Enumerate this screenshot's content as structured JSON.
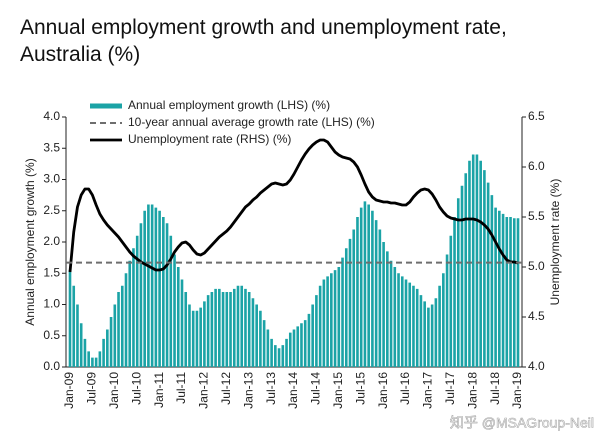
{
  "chart_data": {
    "type": "bar-line",
    "title": "Annual employment growth and unemployment rate, Australia (%)",
    "y_label": "Annual employment growth (%)",
    "y2_label": "Unemployment rate (%)",
    "watermark": "知乎 @MSAGroup-Neil",
    "categories": [
      "Jan-09",
      null,
      null,
      null,
      null,
      null,
      "Jul-09",
      null,
      null,
      null,
      null,
      null,
      "Jan-10",
      null,
      null,
      null,
      null,
      null,
      "Jul-10",
      null,
      null,
      null,
      null,
      null,
      "Jan-11",
      null,
      null,
      null,
      null,
      null,
      "Jul-11",
      null,
      null,
      null,
      null,
      null,
      "Jan-12",
      null,
      null,
      null,
      null,
      null,
      "Jul-12",
      null,
      null,
      null,
      null,
      null,
      "Jan-13",
      null,
      null,
      null,
      null,
      null,
      "Jul-13",
      null,
      null,
      null,
      null,
      null,
      "Jan-14",
      null,
      null,
      null,
      null,
      null,
      "Jul-14",
      null,
      null,
      null,
      null,
      null,
      "Jan-15",
      null,
      null,
      null,
      null,
      null,
      "Jul-15",
      null,
      null,
      null,
      null,
      null,
      "Jan-16",
      null,
      null,
      null,
      null,
      null,
      "Jul-16",
      null,
      null,
      null,
      null,
      null,
      "Jan-17",
      null,
      null,
      null,
      null,
      null,
      "Jul-17",
      null,
      null,
      null,
      null,
      null,
      "Jan-18",
      null,
      null,
      null,
      null,
      null,
      "Jul-18",
      null,
      null,
      null,
      null,
      null,
      "Jan-19"
    ],
    "series": [
      {
        "name": "Annual employment growth (LHS) (%)",
        "kind": "bar",
        "color": "#1ba3a6",
        "axis": "y",
        "values": [
          1.55,
          1.3,
          1.0,
          0.7,
          0.45,
          0.25,
          0.15,
          0.15,
          0.25,
          0.45,
          0.6,
          0.8,
          1.0,
          1.2,
          1.3,
          1.5,
          1.7,
          1.9,
          2.1,
          2.3,
          2.5,
          2.6,
          2.6,
          2.55,
          2.5,
          2.4,
          2.3,
          2.1,
          1.8,
          1.6,
          1.4,
          1.2,
          1.0,
          0.9,
          0.9,
          0.95,
          1.05,
          1.15,
          1.2,
          1.25,
          1.25,
          1.2,
          1.2,
          1.2,
          1.25,
          1.3,
          1.3,
          1.25,
          1.2,
          1.1,
          1.0,
          0.9,
          0.75,
          0.6,
          0.45,
          0.35,
          0.3,
          0.35,
          0.45,
          0.55,
          0.6,
          0.65,
          0.7,
          0.75,
          0.85,
          1.0,
          1.15,
          1.3,
          1.4,
          1.45,
          1.5,
          1.55,
          1.6,
          1.75,
          1.9,
          2.05,
          2.2,
          2.4,
          2.55,
          2.65,
          2.6,
          2.5,
          2.35,
          2.2,
          2.0,
          1.85,
          1.7,
          1.6,
          1.5,
          1.45,
          1.4,
          1.35,
          1.3,
          1.25,
          1.15,
          1.05,
          0.95,
          1.0,
          1.1,
          1.3,
          1.5,
          1.8,
          2.1,
          2.4,
          2.7,
          2.9,
          3.1,
          3.3,
          3.4,
          3.4,
          3.3,
          3.15,
          2.95,
          2.75,
          2.55,
          2.5,
          2.45,
          2.4,
          2.4,
          2.38,
          2.38
        ]
      },
      {
        "name": "Unemployment rate (RHS) (%)",
        "kind": "line",
        "color": "#000000",
        "axis": "y2",
        "values": [
          4.95,
          5.35,
          5.6,
          5.72,
          5.78,
          5.78,
          5.72,
          5.62,
          5.53,
          5.47,
          5.42,
          5.38,
          5.34,
          5.3,
          5.25,
          5.2,
          5.15,
          5.11,
          5.08,
          5.05,
          5.03,
          5.01,
          4.99,
          4.97,
          4.97,
          4.98,
          5.02,
          5.08,
          5.15,
          5.2,
          5.24,
          5.25,
          5.22,
          5.17,
          5.13,
          5.12,
          5.14,
          5.18,
          5.22,
          5.26,
          5.3,
          5.33,
          5.36,
          5.4,
          5.45,
          5.5,
          5.55,
          5.6,
          5.63,
          5.67,
          5.7,
          5.74,
          5.77,
          5.8,
          5.83,
          5.84,
          5.83,
          5.82,
          5.83,
          5.87,
          5.93,
          6.0,
          6.07,
          6.13,
          6.18,
          6.22,
          6.25,
          6.27,
          6.27,
          6.25,
          6.2,
          6.15,
          6.12,
          6.1,
          6.09,
          6.08,
          6.05,
          6.0,
          5.92,
          5.83,
          5.75,
          5.7,
          5.67,
          5.66,
          5.65,
          5.65,
          5.64,
          5.64,
          5.63,
          5.62,
          5.62,
          5.65,
          5.7,
          5.74,
          5.77,
          5.78,
          5.77,
          5.73,
          5.67,
          5.6,
          5.55,
          5.51,
          5.49,
          5.48,
          5.47,
          5.47,
          5.48,
          5.48,
          5.48,
          5.47,
          5.45,
          5.42,
          5.38,
          5.32,
          5.25,
          5.18,
          5.12,
          5.07,
          5.05,
          5.05,
          5.04
        ]
      }
    ],
    "reference_line": {
      "name": "10-year annual average growth rate (LHS) (%)",
      "value": 1.67,
      "color": "#6e6e6e",
      "axis": "y"
    },
    "ylim": [
      0,
      4
    ],
    "yticks": [
      {
        "value": 0,
        "label": "0.0"
      },
      {
        "value": 0.5,
        "label": "0.5"
      },
      {
        "value": 1,
        "label": "1.0"
      },
      {
        "value": 1.5,
        "label": "1.5"
      },
      {
        "value": 2,
        "label": "2.0"
      },
      {
        "value": 2.5,
        "label": "2.5"
      },
      {
        "value": 3,
        "label": "3.0"
      },
      {
        "value": 3.5,
        "label": "3.5"
      },
      {
        "value": 4,
        "label": "4.0"
      }
    ],
    "y2lim": [
      4,
      6.5
    ],
    "y2ticks": [
      {
        "value": 4,
        "label": "4.0"
      },
      {
        "value": 4.5,
        "label": "4.5"
      },
      {
        "value": 5,
        "label": "5.0"
      },
      {
        "value": 5.5,
        "label": "5.5"
      },
      {
        "value": 6,
        "label": "6.0"
      },
      {
        "value": 6.5,
        "label": "6.5"
      }
    ],
    "legend": "top-left"
  }
}
